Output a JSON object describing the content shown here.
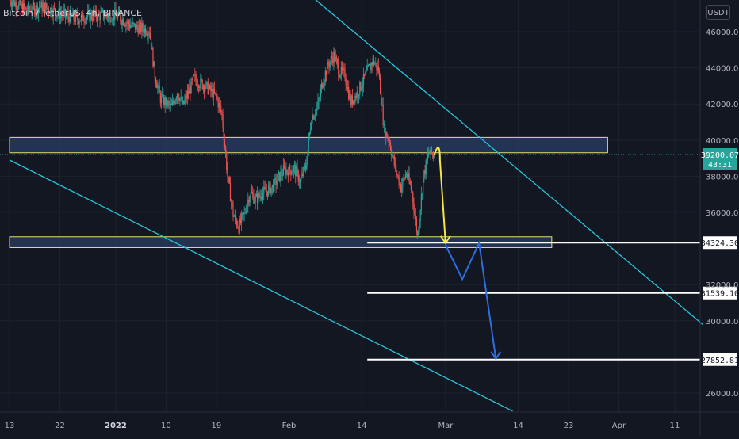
{
  "header": {
    "symbol": "Bitcoin / TetherUS",
    "interval": "4h",
    "exchange": "BINANCE",
    "title_text": "Bitcoin / TetherUS, 4h, BINANCE",
    "currency": "USDT"
  },
  "chart_data": {
    "type": "candlestick",
    "y_axis": {
      "scale": "linear",
      "range": [
        25000,
        47500
      ],
      "ticks": [
        "46000.00",
        "44000.00",
        "42000.00",
        "40000.00",
        "38000.00",
        "36000.00",
        "32000.00",
        "30000.00",
        "26000.00"
      ],
      "tick_values": [
        46000,
        44000,
        42000,
        40000,
        38000,
        36000,
        32000,
        30000,
        26000
      ]
    },
    "x_axis": {
      "ticks": [
        {
          "label": "13",
          "day": 0,
          "bold": false
        },
        {
          "label": "22",
          "day": 9,
          "bold": false
        },
        {
          "label": "2022",
          "day": 19,
          "bold": true
        },
        {
          "label": "10",
          "day": 28,
          "bold": false
        },
        {
          "label": "19",
          "day": 37,
          "bold": false
        },
        {
          "label": "Feb",
          "day": 50,
          "bold": false
        },
        {
          "label": "14",
          "day": 63,
          "bold": false
        },
        {
          "label": "Mar",
          "day": 78,
          "bold": false
        },
        {
          "label": "14",
          "day": 91,
          "bold": false
        },
        {
          "label": "23",
          "day": 100,
          "bold": false
        },
        {
          "label": "Apr",
          "day": 109,
          "bold": false
        },
        {
          "label": "11",
          "day": 119,
          "bold": false
        }
      ]
    },
    "price_path": [
      [
        0,
        47800
      ],
      [
        3,
        47200
      ],
      [
        6,
        47400
      ],
      [
        9,
        47000
      ],
      [
        12,
        46700
      ],
      [
        15,
        46900
      ],
      [
        19,
        46900
      ],
      [
        22,
        46300
      ],
      [
        25,
        46100
      ],
      [
        26,
        43600
      ],
      [
        27,
        42300
      ],
      [
        29,
        41800
      ],
      [
        30,
        42700
      ],
      [
        31,
        41900
      ],
      [
        33,
        43400
      ],
      [
        35,
        43000
      ],
      [
        37,
        42400
      ],
      [
        38,
        41400
      ],
      [
        39,
        38000
      ],
      [
        40,
        35900
      ],
      [
        41,
        35200
      ],
      [
        42,
        35900
      ],
      [
        43,
        37100
      ],
      [
        44,
        36700
      ],
      [
        45,
        37000
      ],
      [
        47,
        37400
      ],
      [
        49,
        38300
      ],
      [
        51,
        38400
      ],
      [
        52,
        37700
      ],
      [
        53,
        38500
      ],
      [
        54,
        41300
      ],
      [
        55,
        41700
      ],
      [
        56,
        43200
      ],
      [
        57,
        44200
      ],
      [
        58,
        44700
      ],
      [
        59,
        43800
      ],
      [
        60,
        43600
      ],
      [
        61,
        42100
      ],
      [
        62,
        42500
      ],
      [
        63,
        43100
      ],
      [
        64,
        43800
      ],
      [
        65,
        44400
      ],
      [
        66,
        43900
      ],
      [
        67,
        40600
      ],
      [
        68,
        39900
      ],
      [
        69,
        38400
      ],
      [
        70,
        37400
      ],
      [
        71,
        38200
      ],
      [
        72,
        37100
      ],
      [
        73,
        34700
      ],
      [
        74,
        37900
      ],
      [
        75,
        39300
      ],
      [
        76,
        39200
      ]
    ],
    "horizontal_levels": [
      {
        "price": 34324.3,
        "label": "34324.30"
      },
      {
        "price": 31539.1,
        "label": "31539.10"
      },
      {
        "price": 27852.81,
        "label": "27852.81"
      }
    ],
    "current_price": {
      "value": 39200.07,
      "label": "39200.07",
      "countdown": "43:31"
    },
    "zones": [
      {
        "name": "resistance-zone",
        "day_start": 0,
        "day_end": 107,
        "price_low": 39300,
        "price_high": 40150
      },
      {
        "name": "support-zone",
        "day_start": 0,
        "day_end": 97,
        "price_low": 34050,
        "price_high": 34650
      }
    ],
    "trendlines": [
      {
        "name": "upper-trendline",
        "from": [
          50,
          49000
        ],
        "to": [
          124,
          29800
        ]
      },
      {
        "name": "lower-trendline",
        "from": [
          0,
          38900
        ],
        "to": [
          90,
          25000
        ]
      }
    ],
    "projection_path": [
      [
        76,
        39200
      ],
      [
        77,
        38900
      ],
      [
        78,
        34300
      ],
      [
        78,
        34200
      ]
    ],
    "forecast_path": [
      [
        78,
        34200
      ],
      [
        81,
        32300
      ],
      [
        84,
        34300
      ],
      [
        87,
        27900
      ]
    ],
    "colors": {
      "background": "#131722",
      "grid": "#1e222d",
      "up_candle": "#26a69a",
      "down_candle": "#ef5350",
      "zone_fill": "#2a3d66",
      "zone_border": "#e8e36a",
      "trendline": "#26c6da",
      "projection_arrow": "#f5e44c",
      "forecast_arrow": "#2e6fe0",
      "level_line": "#ffffff",
      "axis_text": "#b2b5be"
    }
  }
}
